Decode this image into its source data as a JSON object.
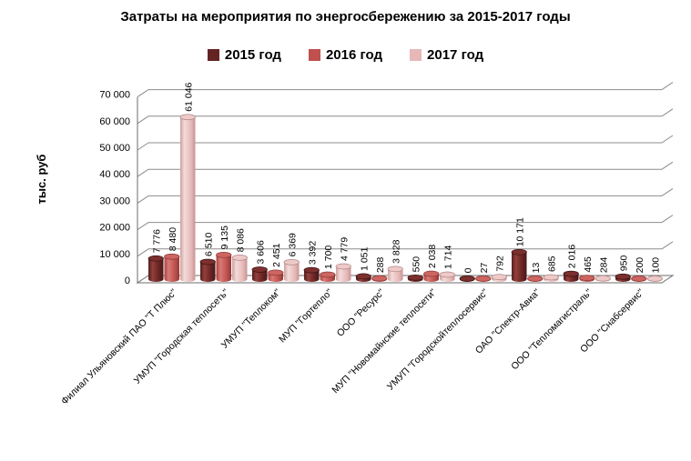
{
  "title": "Затраты на мероприятия по энергосбережению за 2015-2017 годы",
  "chart_data": {
    "type": "bar",
    "subtype": "3d-cylinder",
    "title": "Затраты на мероприятия по энергосбережению за 2015-2017 годы",
    "xlabel": "",
    "ylabel": "тыс. руб",
    "ylim": [
      0,
      70000
    ],
    "ytick_step": 10000,
    "yticks": [
      "0",
      "10 000",
      "20 000",
      "30 000",
      "40 000",
      "50 000",
      "60 000",
      "70 000"
    ],
    "grid": true,
    "legend_position": "top",
    "categories": [
      "Филиал Ульяновский ПАО \"Т Плюс\"",
      "УМУП \"Городская теплосеть\"",
      "УМУП \"Теплоком\"",
      "МУП \"Гортепло\"",
      "ООО \"Ресурс\"",
      "МУП \"Новомайнские теплосети\"",
      "УМУП \"Городскойтеплосервис\"",
      "ОАО \"Спектр-Авиа\"",
      "ООО \"Тепломагистраль\"",
      "ООО \"Снабсервис\""
    ],
    "series": [
      {
        "name": "2015 год",
        "color": "#632423",
        "values": [
          7776,
          6510,
          3606,
          3392,
          1051,
          550,
          0,
          10171,
          2016,
          950
        ]
      },
      {
        "name": "2016 год",
        "color": "#C0504D",
        "values": [
          8480,
          9135,
          2451,
          1700,
          288,
          2038,
          27,
          13,
          465,
          200
        ]
      },
      {
        "name": "2017 год",
        "color": "#E6B9B8",
        "values": [
          61046,
          8086,
          6369,
          4779,
          3828,
          1714,
          792,
          685,
          284,
          100
        ]
      }
    ],
    "colors": {
      "gridline": "#8c8c8c",
      "axis": "#6e6e6e",
      "label_text": "#000000"
    }
  }
}
